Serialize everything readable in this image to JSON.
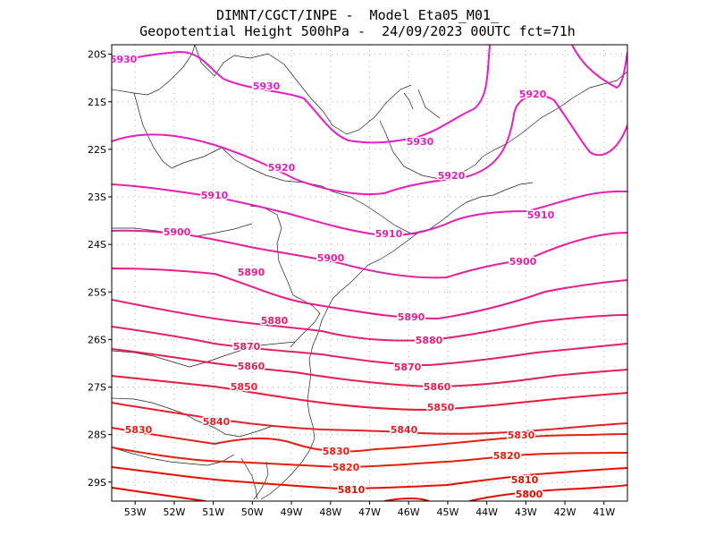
{
  "header": {
    "line1": "DIMNT/CGCT/INPE -  Model Eta05_M01_",
    "line2": "Geopotential Height 500hPa -  24/09/2023 00UTC fct=71h"
  },
  "axes": {
    "lat_labels": [
      "20S",
      "21S",
      "22S",
      "23S",
      "24S",
      "25S",
      "26S",
      "27S",
      "28S",
      "29S"
    ],
    "lon_labels": [
      "53W",
      "52W",
      "51W",
      "50W",
      "49W",
      "48W",
      "47W",
      "46W",
      "45W",
      "44W",
      "43W",
      "42W",
      "41W"
    ],
    "lon_range": [
      -53.6,
      -40.4
    ],
    "lat_range": [
      -29.4,
      -19.8
    ],
    "grid": "dotted"
  },
  "chart_data": {
    "type": "contour",
    "variable": "Geopotential Height 500hPa",
    "levels": [
      5800,
      5810,
      5820,
      5830,
      5840,
      5850,
      5860,
      5870,
      5880,
      5890,
      5900,
      5910,
      5920,
      5930
    ],
    "label_texts": [
      "5930",
      "5930",
      "5930",
      "5920",
      "5920",
      "5920",
      "5910",
      "5910",
      "5910",
      "5900",
      "5900",
      "5900",
      "5890",
      "5890",
      "5880",
      "5880",
      "5870",
      "5870",
      "5860",
      "5860",
      "5850",
      "5850",
      "5840",
      "5840",
      "5830",
      "5830",
      "5830",
      "5820",
      "5820",
      "5810",
      "5810",
      "5800"
    ],
    "colors": {
      "5930": "#e61ec8",
      "5920": "#e61ebe",
      "5910": "#e61eb4",
      "5900": "#e61ea0",
      "5890": "#e61e8c",
      "5880": "#e61e78",
      "5870": "#e61e64",
      "5860": "#e61e50",
      "5850": "#e61e3c",
      "5840": "#e61e28",
      "5830": "#e61e14",
      "5820": "#e61e0a",
      "5810": "#e60f00",
      "5800": "#e60a00"
    }
  }
}
